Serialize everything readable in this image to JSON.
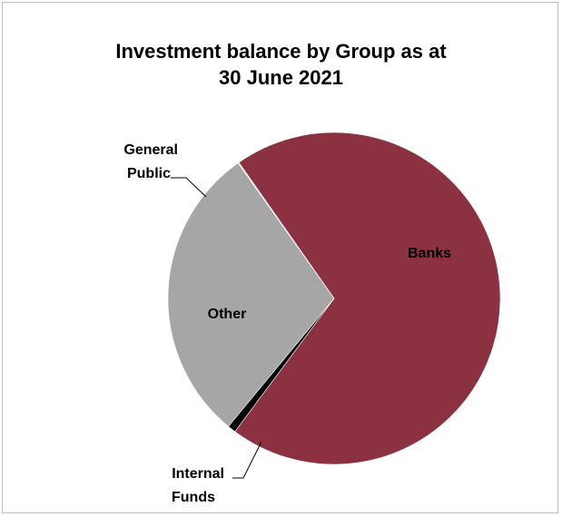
{
  "chart_data": {
    "type": "pie",
    "title": "Investment balance by Group as at 30 June 2021",
    "title_lines": [
      "Investment balance by Group as at",
      "30 June 2021"
    ],
    "categories": [
      "Banks",
      "Internal Funds",
      "Other",
      "General Public"
    ],
    "values": [
      69.9,
      0.8,
      29.2,
      0.1
    ],
    "unit": "percent",
    "colors": [
      "#8b3142",
      "#000000",
      "#a6a6a6",
      "#d9d9d9"
    ],
    "labels": {
      "banks": "Banks",
      "other": "Other",
      "general_public_line1": "General",
      "general_public_line2": "Public",
      "internal_funds_line1": "Internal",
      "internal_funds_line2": "Funds"
    },
    "legend": "none",
    "grid": false
  }
}
